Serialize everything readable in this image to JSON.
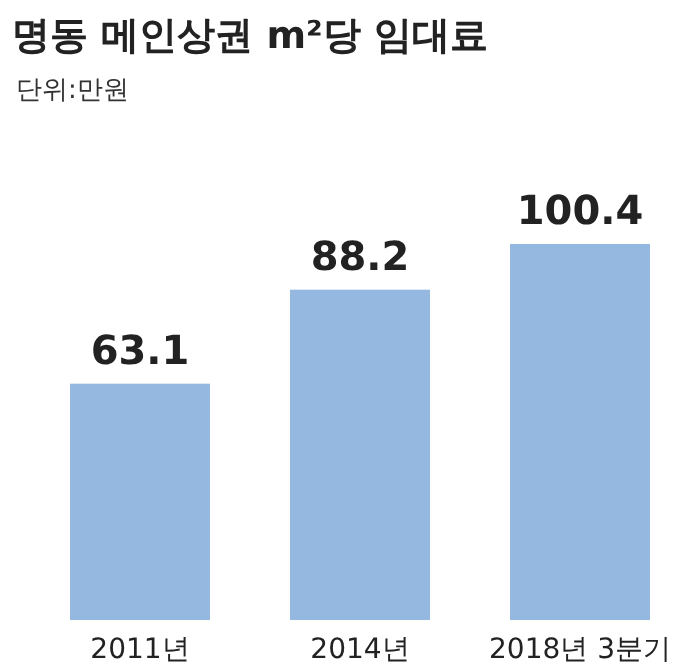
{
  "chart_data": {
    "type": "bar",
    "title": "명동 메인상권 m²당 임대료",
    "subtitle": "단위:만원",
    "categories": [
      "2011년",
      "2014년",
      "2018년 3분기"
    ],
    "values": [
      63.1,
      88.2,
      100.4
    ],
    "color": "#94b8df",
    "data_labels": true
  }
}
